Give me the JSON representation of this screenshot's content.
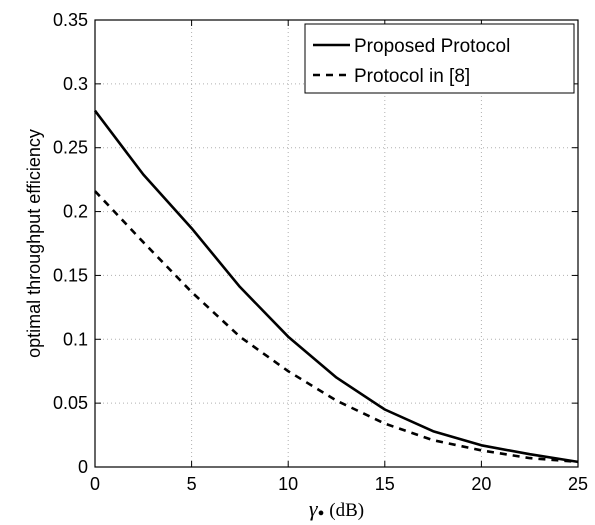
{
  "chart_data": {
    "type": "line",
    "title": "",
    "xlabel_symbol": "γ",
    "xlabel_subscript": "•",
    "xlabel_unit": " (dB)",
    "ylabel": "optimal throughput efficiency",
    "xlim": [
      0,
      25
    ],
    "ylim": [
      0,
      0.35
    ],
    "xticks": [
      0,
      5,
      10,
      15,
      20,
      25
    ],
    "yticks": [
      0,
      0.05,
      0.1,
      0.15,
      0.2,
      0.25,
      0.3,
      0.35
    ],
    "xtick_labels": [
      "0",
      "5",
      "10",
      "15",
      "20",
      "25"
    ],
    "ytick_labels": [
      "0",
      "0.05",
      "0.1",
      "0.15",
      "0.2",
      "0.25",
      "0.3",
      "0.35"
    ],
    "grid": true,
    "legend_position": "top-right",
    "x": [
      0,
      2.5,
      5,
      7.5,
      10,
      12.5,
      15,
      17.5,
      20,
      22.5,
      25
    ],
    "series": [
      {
        "name": "Proposed Protocol",
        "style": "solid",
        "color": "#000000",
        "values": [
          0.279,
          0.229,
          0.187,
          0.141,
          0.102,
          0.07,
          0.045,
          0.028,
          0.017,
          0.01,
          0.004
        ]
      },
      {
        "name": "Protocol in [8]",
        "style": "dashed",
        "color": "#000000",
        "values": [
          0.216,
          0.176,
          0.137,
          0.102,
          0.075,
          0.052,
          0.034,
          0.021,
          0.013,
          0.007,
          0.004
        ]
      }
    ]
  }
}
